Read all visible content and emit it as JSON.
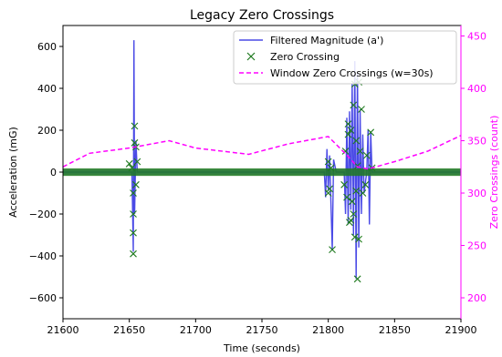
{
  "chart_data": {
    "type": "line",
    "title": "Legacy Zero Crossings",
    "xlabel": "Time (seconds)",
    "ylabel_left": "Acceleration (mG)",
    "ylabel_right": "Zero Crossings (count)",
    "xlim": [
      21600,
      21900
    ],
    "ylim_left": [
      -700,
      700
    ],
    "ylim_right": [
      180,
      460
    ],
    "x_ticks": [
      "21600",
      "21650",
      "21700",
      "21750",
      "21800",
      "21850",
      "21900"
    ],
    "y_left_ticks": [
      "600",
      "400",
      "200",
      "0",
      "−200",
      "−400",
      "−600"
    ],
    "y_right_ticks": [
      "450",
      "400",
      "350",
      "300",
      "250",
      "200"
    ],
    "grid": false,
    "legend_position": "top-right",
    "colors": {
      "filtered": "#4a4ae6",
      "crossing": "#1f7a1f",
      "window": "#ff00ff",
      "right_axis": "#ff00ff"
    },
    "series": [
      {
        "name": "Filtered Magnitude (a')",
        "kind": "line",
        "axis": "left",
        "points": [
          [
            21600,
            0
          ],
          [
            21652,
            0
          ],
          [
            21653,
            -380
          ],
          [
            21653.5,
            630
          ],
          [
            21654,
            -200
          ],
          [
            21655,
            150
          ],
          [
            21656,
            0
          ],
          [
            21797,
            0
          ],
          [
            21798,
            -120
          ],
          [
            21799,
            110
          ],
          [
            21800,
            -90
          ],
          [
            21801,
            80
          ],
          [
            21803,
            -370
          ],
          [
            21804,
            60
          ],
          [
            21806,
            0
          ],
          [
            21812,
            0
          ],
          [
            21813,
            -200
          ],
          [
            21814,
            260
          ],
          [
            21815,
            -250
          ],
          [
            21816,
            290
          ],
          [
            21817,
            -180
          ],
          [
            21818,
            420
          ],
          [
            21819,
            -300
          ],
          [
            21820,
            530
          ],
          [
            21821,
            -510
          ],
          [
            21822,
            480
          ],
          [
            21823,
            -360
          ],
          [
            21824,
            300
          ],
          [
            21825,
            -200
          ],
          [
            21826,
            180
          ],
          [
            21827,
            -100
          ],
          [
            21829,
            0
          ],
          [
            21830,
            200
          ],
          [
            21831,
            -250
          ],
          [
            21832,
            190
          ],
          [
            21833,
            0
          ],
          [
            21900,
            0
          ]
        ]
      },
      {
        "name": "Zero Crossing",
        "kind": "marker",
        "axis": "left",
        "points": [
          [
            21650,
            40
          ],
          [
            21652,
            20
          ],
          [
            21653,
            -390
          ],
          [
            21653,
            -290
          ],
          [
            21653,
            -200
          ],
          [
            21653,
            -100
          ],
          [
            21654,
            220
          ],
          [
            21654,
            140
          ],
          [
            21655,
            120
          ],
          [
            21655,
            -60
          ],
          [
            21656,
            50
          ],
          [
            21800,
            50
          ],
          [
            21800,
            -100
          ],
          [
            21801,
            -80
          ],
          [
            21802,
            20
          ],
          [
            21803,
            -370
          ],
          [
            21812,
            -60
          ],
          [
            21813,
            100
          ],
          [
            21814,
            -120
          ],
          [
            21815,
            180
          ],
          [
            21815,
            230
          ],
          [
            21816,
            -240
          ],
          [
            21817,
            200
          ],
          [
            21817,
            -230
          ],
          [
            21818,
            -140
          ],
          [
            21819,
            320
          ],
          [
            21819,
            -200
          ],
          [
            21820,
            420
          ],
          [
            21820,
            -310
          ],
          [
            21821,
            150
          ],
          [
            21821,
            -90
          ],
          [
            21822,
            -510
          ],
          [
            21822,
            30
          ],
          [
            21823,
            430
          ],
          [
            21823,
            -320
          ],
          [
            21824,
            100
          ],
          [
            21825,
            300
          ],
          [
            21826,
            -100
          ],
          [
            21828,
            -60
          ],
          [
            21829,
            80
          ],
          [
            21832,
            190
          ],
          [
            21833,
            20
          ]
        ]
      },
      {
        "name": "Window Zero Crossings (w=30s)",
        "kind": "dashed-line",
        "axis": "right",
        "points": [
          [
            21600,
            325
          ],
          [
            21620,
            338
          ],
          [
            21650,
            343
          ],
          [
            21680,
            350
          ],
          [
            21700,
            343
          ],
          [
            21740,
            337
          ],
          [
            21770,
            347
          ],
          [
            21800,
            354
          ],
          [
            21815,
            335
          ],
          [
            21822,
            325
          ],
          [
            21830,
            323
          ],
          [
            21850,
            330
          ],
          [
            21875,
            340
          ],
          [
            21900,
            355
          ]
        ]
      }
    ]
  }
}
